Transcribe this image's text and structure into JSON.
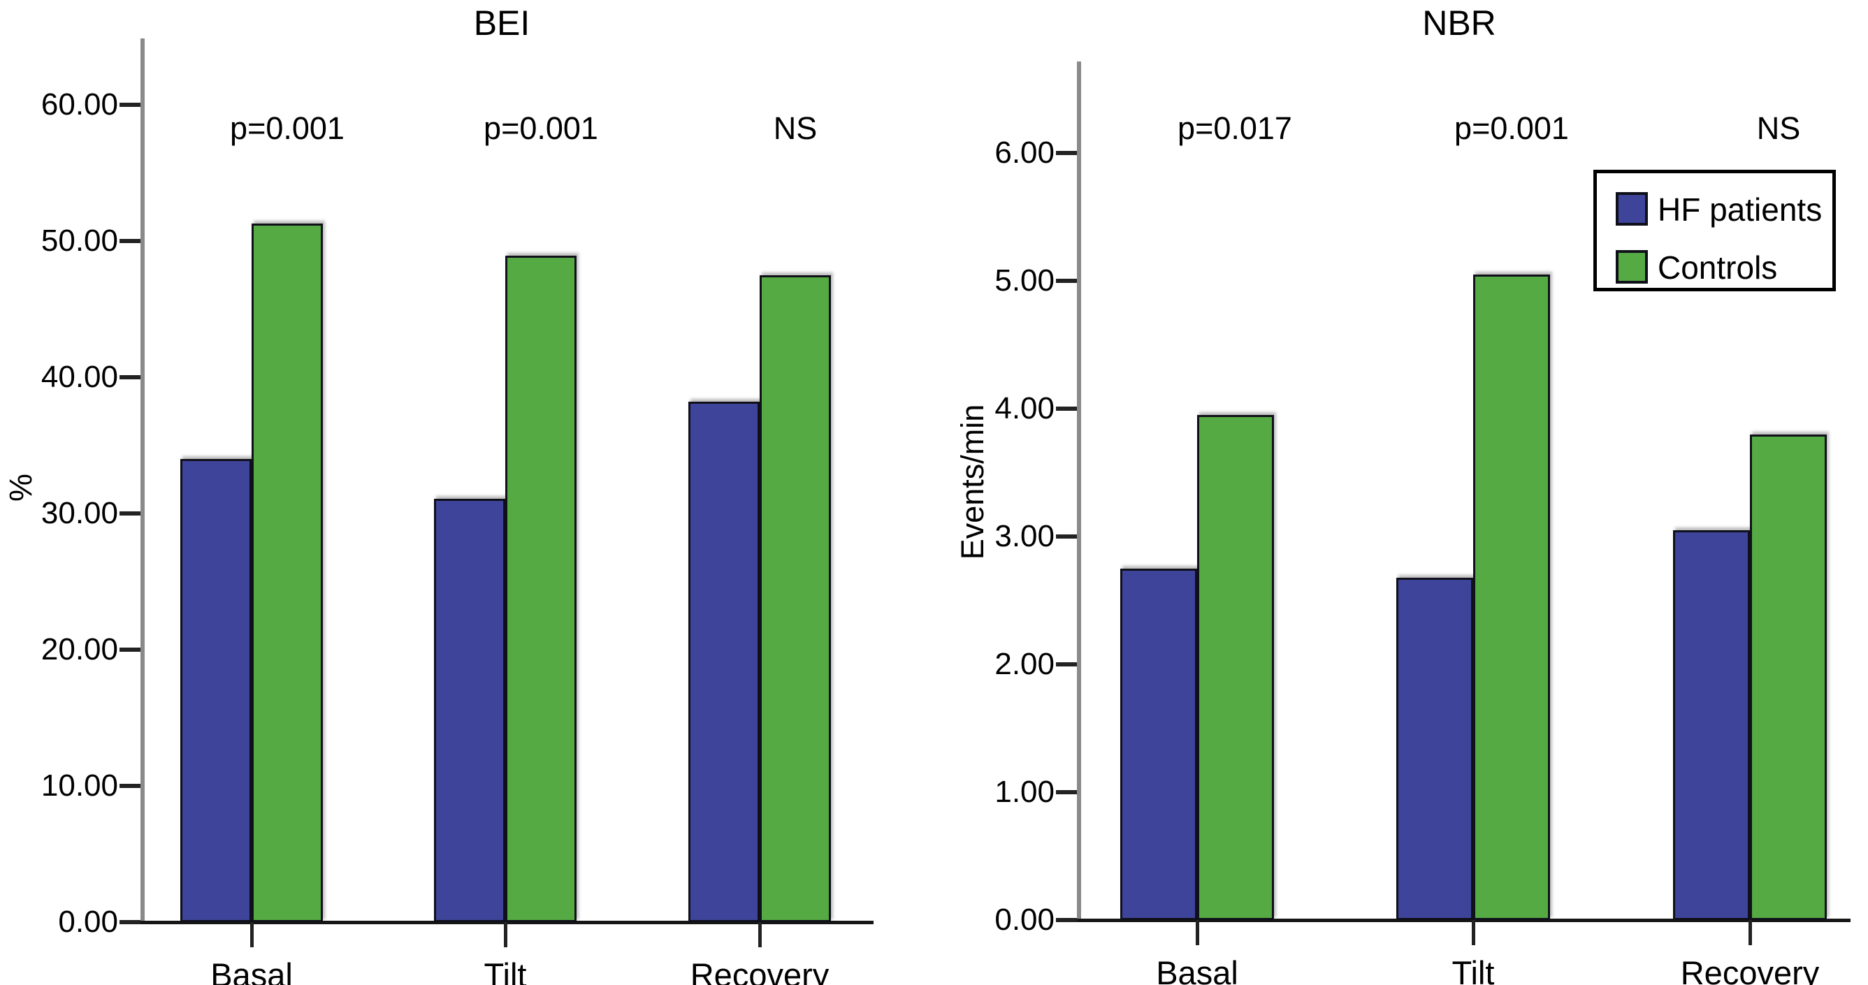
{
  "figure": {
    "kind": "dual-panel grouped bar figure",
    "background": "#ffffff"
  },
  "colors": {
    "hf_patients": "#3D4499",
    "controls": "#56AA43",
    "bar_border": "#10101a",
    "axis_gray": "#8a8a8a",
    "text": "#000000"
  },
  "legend": {
    "items": [
      {
        "label": "HF patients",
        "color": "#3D4499"
      },
      {
        "label": "Controls",
        "color": "#56AA43"
      }
    ]
  },
  "chart_data": [
    {
      "type": "bar",
      "title": "BEI",
      "xlabel": "",
      "ylabel": "%",
      "categories": [
        "Basal",
        "Tilt",
        "Recovery"
      ],
      "series": [
        {
          "name": "HF patients",
          "values": [
            34.0,
            31.1,
            38.2
          ]
        },
        {
          "name": "Controls",
          "values": [
            51.3,
            48.9,
            47.5
          ]
        }
      ],
      "significance_labels": [
        "p=0.001",
        "p=0.001",
        "NS"
      ],
      "ytick_labels": [
        "0.00",
        "10.00",
        "20.00",
        "30.00",
        "40.00",
        "50.00",
        "60.00"
      ],
      "ytick_values": [
        0,
        10,
        20,
        30,
        40,
        50,
        60
      ],
      "ylim": [
        0,
        65
      ],
      "grid": false,
      "legend_position": "none"
    },
    {
      "type": "bar",
      "title": "NBR",
      "xlabel": "",
      "ylabel": "Events/min",
      "categories": [
        "Basal",
        "Tilt",
        "Recovery"
      ],
      "series": [
        {
          "name": "HF patients",
          "values": [
            2.75,
            2.68,
            3.05
          ]
        },
        {
          "name": "Controls",
          "values": [
            3.95,
            5.05,
            3.8
          ]
        }
      ],
      "significance_labels": [
        "p=0.017",
        "p=0.001",
        "NS"
      ],
      "ytick_labels": [
        "0.00",
        "1.00",
        "2.00",
        "3.00",
        "4.00",
        "5.00",
        "6.00"
      ],
      "ytick_values": [
        0,
        1,
        2,
        3,
        4,
        5,
        6
      ],
      "ylim": [
        0,
        6.7
      ],
      "grid": false,
      "legend_position": "upper-right"
    }
  ]
}
